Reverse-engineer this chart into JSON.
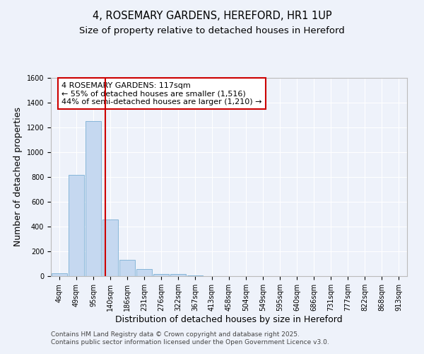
{
  "title1": "4, ROSEMARY GARDENS, HEREFORD, HR1 1UP",
  "title2": "Size of property relative to detached houses in Hereford",
  "xlabel": "Distribution of detached houses by size in Hereford",
  "ylabel": "Number of detached properties",
  "categories": [
    "4sqm",
    "49sqm",
    "95sqm",
    "140sqm",
    "186sqm",
    "231sqm",
    "276sqm",
    "322sqm",
    "367sqm",
    "413sqm",
    "458sqm",
    "504sqm",
    "549sqm",
    "595sqm",
    "640sqm",
    "686sqm",
    "731sqm",
    "777sqm",
    "822sqm",
    "868sqm",
    "913sqm"
  ],
  "values": [
    25,
    820,
    1250,
    460,
    130,
    60,
    20,
    15,
    5,
    2,
    0,
    0,
    0,
    0,
    0,
    0,
    0,
    0,
    0,
    0,
    0
  ],
  "bar_color": "#c5d8f0",
  "bar_edge_color": "#7aafd4",
  "vline_x": 2.72,
  "vline_color": "#cc0000",
  "annotation_line1": "4 ROSEMARY GARDENS: 117sqm",
  "annotation_line2": "← 55% of detached houses are smaller (1,516)",
  "annotation_line3": "44% of semi-detached houses are larger (1,210) →",
  "annotation_box_color": "#cc0000",
  "ylim": [
    0,
    1600
  ],
  "yticks": [
    0,
    200,
    400,
    600,
    800,
    1000,
    1200,
    1400,
    1600
  ],
  "background_color": "#eef2fa",
  "plot_bg_color": "#eef2fa",
  "grid_color": "#ffffff",
  "footer_line1": "Contains HM Land Registry data © Crown copyright and database right 2025.",
  "footer_line2": "Contains public sector information licensed under the Open Government Licence v3.0.",
  "title_fontsize": 10.5,
  "subtitle_fontsize": 9.5,
  "axis_label_fontsize": 9,
  "tick_fontsize": 7,
  "annot_fontsize": 8,
  "footer_fontsize": 6.5
}
